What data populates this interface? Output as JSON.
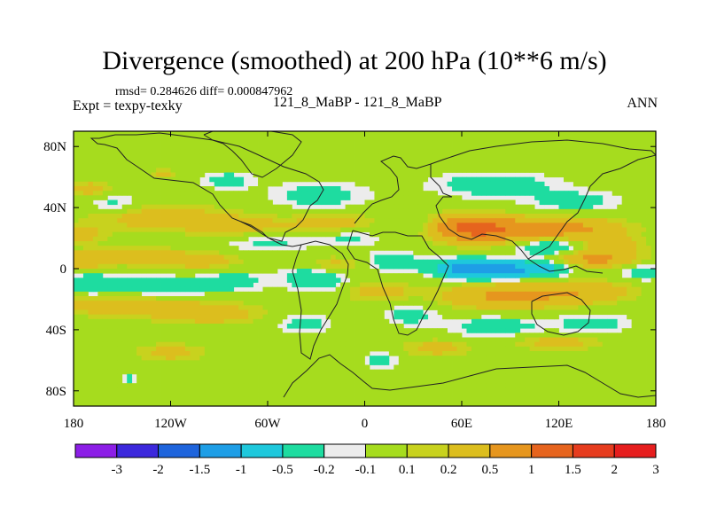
{
  "chart_data": {
    "type": "heatmap",
    "title": "Divergence (smoothed) at 200 hPa (10**6 m/s)",
    "stats_line": "rmsd= 0.284626 diff= 0.000847962",
    "left_label": "Expt = texpy-texky",
    "center_label": "121_8_MaBP - 121_8_MaBP",
    "right_label": "ANN",
    "x_axis": {
      "range": [
        -180,
        180
      ],
      "ticks": [
        -180,
        -120,
        -60,
        0,
        60,
        120,
        180
      ],
      "tick_labels": [
        "180",
        "120W",
        "60W",
        "0",
        "60E",
        "120E",
        "180"
      ]
    },
    "y_axis": {
      "range": [
        -90,
        90
      ],
      "ticks": [
        80,
        40,
        0,
        -40,
        -80
      ],
      "tick_labels": [
        "80N",
        "40N",
        "0",
        "40S",
        "80S"
      ]
    },
    "colorbar": {
      "colors": [
        "#8c1ee6",
        "#3c28dc",
        "#1e64dc",
        "#1e9ee6",
        "#1ec8dc",
        "#1edca0",
        "#ececec",
        "#a6dc1e",
        "#c8d21e",
        "#dcbe1e",
        "#e6961e",
        "#e6641e",
        "#e63c1e",
        "#e61e1e"
      ],
      "labels": [
        "-3",
        "-2",
        "-1.5",
        "-1",
        "-0.5",
        "-0.2",
        "-0.1",
        "0.1",
        "0.2",
        "0.5",
        "1",
        "1.5",
        "2",
        "3"
      ],
      "levels": [
        -3,
        -2,
        -1.5,
        -1,
        -0.5,
        -0.2,
        -0.1,
        0.1,
        0.2,
        0.5,
        1,
        1.5,
        2,
        3
      ]
    },
    "features": [
      {
        "lon": -178,
        "lat": 5,
        "a": 0.45,
        "sx": 12,
        "sy": 4
      },
      {
        "lon": -140,
        "lat": 8,
        "a": 0.4,
        "sx": 18,
        "sy": 4
      },
      {
        "lon": -100,
        "lat": 5,
        "a": 0.35,
        "sx": 16,
        "sy": 4
      },
      {
        "lon": -170,
        "lat": -10,
        "a": -0.4,
        "sx": 14,
        "sy": 5
      },
      {
        "lon": -125,
        "lat": -12,
        "a": -0.35,
        "sx": 22,
        "sy": 5
      },
      {
        "lon": -80,
        "lat": -8,
        "a": -0.3,
        "sx": 14,
        "sy": 5
      },
      {
        "lon": -150,
        "lat": -24,
        "a": 0.35,
        "sx": 35,
        "sy": 5
      },
      {
        "lon": -95,
        "lat": -30,
        "a": 0.3,
        "sx": 25,
        "sy": 5
      },
      {
        "lon": -155,
        "lat": 42,
        "a": -0.3,
        "sx": 12,
        "sy": 5
      },
      {
        "lon": -175,
        "lat": 22,
        "a": 0.3,
        "sx": 10,
        "sy": 4
      },
      {
        "lon": -130,
        "lat": 34,
        "a": 0.35,
        "sx": 30,
        "sy": 6
      },
      {
        "lon": -80,
        "lat": 28,
        "a": 0.3,
        "sx": 22,
        "sy": 5
      },
      {
        "lon": -60,
        "lat": 17,
        "a": -0.25,
        "sx": 20,
        "sy": 4
      },
      {
        "lon": -28,
        "lat": 48,
        "a": -0.3,
        "sx": 22,
        "sy": 7
      },
      {
        "lon": -20,
        "lat": 30,
        "a": 0.3,
        "sx": 20,
        "sy": 5
      },
      {
        "lon": -10,
        "lat": 20,
        "a": -0.25,
        "sx": 15,
        "sy": 4
      },
      {
        "lon": -30,
        "lat": -6,
        "a": -0.45,
        "sx": 14,
        "sy": 6
      },
      {
        "lon": -20,
        "lat": 2,
        "a": 0.35,
        "sx": 12,
        "sy": 4
      },
      {
        "lon": -38,
        "lat": -36,
        "a": -0.3,
        "sx": 12,
        "sy": 5
      },
      {
        "lon": 18,
        "lat": 5,
        "a": -0.35,
        "sx": 12,
        "sy": 5
      },
      {
        "lon": 8,
        "lat": -15,
        "a": 0.3,
        "sx": 15,
        "sy": 5
      },
      {
        "lon": 28,
        "lat": -30,
        "a": -0.3,
        "sx": 12,
        "sy": 5
      },
      {
        "lon": 35,
        "lat": 28,
        "a": -0.25,
        "sx": 15,
        "sy": 4
      },
      {
        "lon": 62,
        "lat": 0,
        "a": -1.1,
        "sx": 14,
        "sy": 4
      },
      {
        "lon": 85,
        "lat": -1,
        "a": -0.9,
        "sx": 16,
        "sy": 4
      },
      {
        "lon": 110,
        "lat": 1,
        "a": -0.6,
        "sx": 14,
        "sy": 4
      },
      {
        "lon": 140,
        "lat": 6,
        "a": 0.6,
        "sx": 20,
        "sy": 4
      },
      {
        "lon": 172,
        "lat": -2,
        "a": -0.35,
        "sx": 10,
        "sy": 4
      },
      {
        "lon": 75,
        "lat": 25,
        "a": 0.8,
        "sx": 22,
        "sy": 6
      },
      {
        "lon": 60,
        "lat": 28,
        "a": 0.6,
        "sx": 15,
        "sy": 5
      },
      {
        "lon": 125,
        "lat": 26,
        "a": 0.6,
        "sx": 25,
        "sy": 5
      },
      {
        "lon": 115,
        "lat": 14,
        "a": -0.5,
        "sx": 16,
        "sy": 4
      },
      {
        "lon": 80,
        "lat": 55,
        "a": -0.35,
        "sx": 28,
        "sy": 6
      },
      {
        "lon": 130,
        "lat": 44,
        "a": -0.3,
        "sx": 20,
        "sy": 5
      },
      {
        "lon": 150,
        "lat": 15,
        "a": 0.35,
        "sx": 15,
        "sy": 4
      },
      {
        "lon": 90,
        "lat": -18,
        "a": 0.6,
        "sx": 28,
        "sy": 6
      },
      {
        "lon": 140,
        "lat": -15,
        "a": 0.35,
        "sx": 20,
        "sy": 5
      },
      {
        "lon": 80,
        "lat": -38,
        "a": -0.35,
        "sx": 20,
        "sy": 5
      },
      {
        "lon": 140,
        "lat": -36,
        "a": -0.3,
        "sx": 18,
        "sy": 5
      },
      {
        "lon": 120,
        "lat": -48,
        "a": 0.3,
        "sx": 20,
        "sy": 4
      },
      {
        "lon": 45,
        "lat": -52,
        "a": 0.3,
        "sx": 15,
        "sy": 4
      },
      {
        "lon": 10,
        "lat": -60,
        "a": -0.3,
        "sx": 8,
        "sy": 4
      },
      {
        "lon": -120,
        "lat": -55,
        "a": 0.3,
        "sx": 15,
        "sy": 4
      },
      {
        "lon": -145,
        "lat": -72,
        "a": -0.3,
        "sx": 3,
        "sy": 2
      },
      {
        "lon": -85,
        "lat": 58,
        "a": -0.3,
        "sx": 12,
        "sy": 4
      },
      {
        "lon": -125,
        "lat": 62,
        "a": 0.3,
        "sx": 5,
        "sy": 2
      },
      {
        "lon": -170,
        "lat": 52,
        "a": 0.3,
        "sx": 10,
        "sy": 4
      }
    ]
  }
}
